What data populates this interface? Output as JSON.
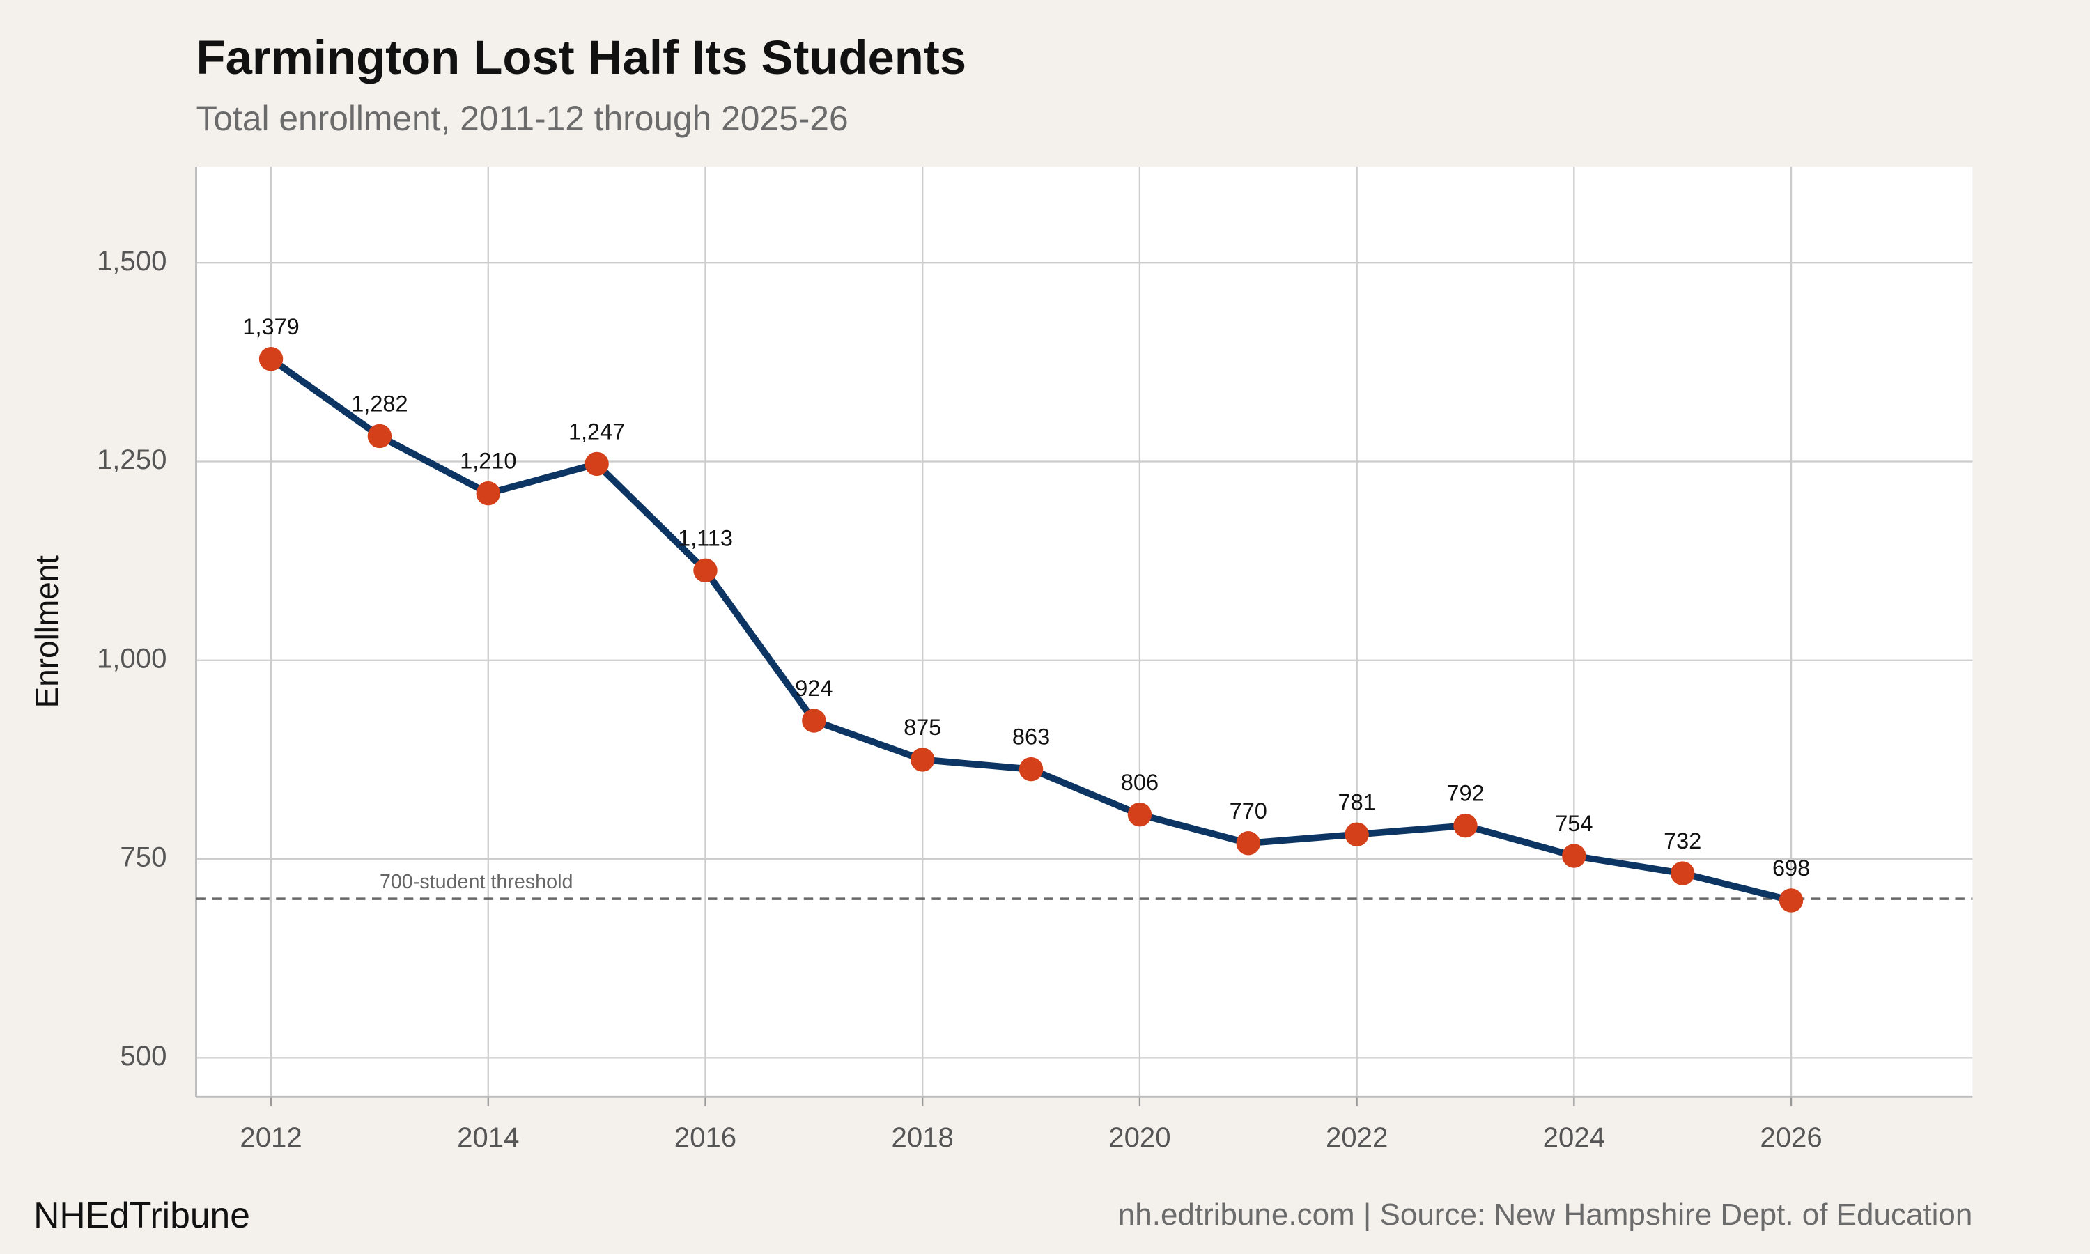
{
  "chart_data": {
    "type": "line",
    "title": "Farmington Lost Half Its Students",
    "subtitle": "Total enrollment, 2011-12 through 2025-26",
    "y_label": "Enrollment",
    "branding": "NHEdTribune",
    "source": "nh.edtribune.com | Source: New Hampshire Dept. of Education",
    "x": [
      2012,
      2013,
      2014,
      2015,
      2016,
      2017,
      2018,
      2019,
      2020,
      2021,
      2022,
      2023,
      2024,
      2025,
      2026
    ],
    "series": [
      {
        "name": "Enrollment",
        "color": "#0d3563",
        "marker_color": "#d4401a",
        "values": [
          1379,
          1282,
          1210,
          1247,
          1113,
          924,
          875,
          863,
          806,
          770,
          781,
          792,
          754,
          732,
          698
        ],
        "value_labels": [
          "1,379",
          "1,282",
          "1,210",
          "1,247",
          "1,113",
          "924",
          "875",
          "863",
          "806",
          "770",
          "781",
          "792",
          "754",
          "732",
          "698"
        ]
      }
    ],
    "threshold": {
      "value": 700,
      "label": "700-student threshold"
    },
    "xlim": [
      2011.31,
      2027.67
    ],
    "xticks": [
      2012,
      2014,
      2016,
      2018,
      2020,
      2022,
      2024,
      2026
    ],
    "ylim": [
      451,
      1621
    ],
    "yticks": [
      500,
      750,
      {
        "value": 1000,
        "label": "1,000"
      },
      {
        "value": 1250,
        "label": "1,250"
      },
      {
        "value": 1500,
        "label": "1,500"
      }
    ],
    "grid": true
  }
}
